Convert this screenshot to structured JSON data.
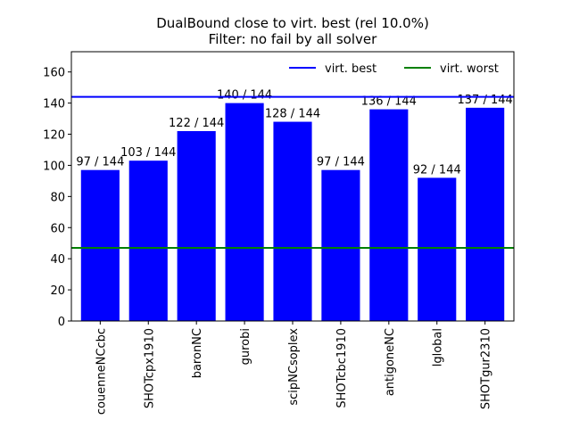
{
  "chart_data": {
    "type": "bar",
    "title": "DualBound close to virt. best (rel 10.0%)",
    "subtitle": "Filter: no fail by all solver",
    "xlabel": "",
    "ylabel": "",
    "categories": [
      "couenneNCcbc",
      "SHOTcpx1910",
      "baronNC",
      "gurobi",
      "scipNCsoplex",
      "SHOTcbc1910",
      "antigoneNC",
      "lglobal",
      "SHOTgur2310"
    ],
    "values": [
      97,
      103,
      122,
      140,
      128,
      97,
      136,
      92,
      137
    ],
    "bar_labels": [
      "97 / 144",
      "103 / 144",
      "122 / 144",
      "140 / 144",
      "128 / 144",
      "97 / 144",
      "136 / 144",
      "92 / 144",
      "137 / 144"
    ],
    "bar_color": "#0000ff",
    "ylim": [
      0,
      173
    ],
    "yticks": [
      0,
      20,
      40,
      60,
      80,
      100,
      120,
      140,
      160
    ],
    "reference_lines": [
      {
        "name": "virt. best",
        "value": 144,
        "color": "#0000ff"
      },
      {
        "name": "virt. worst",
        "value": 47,
        "color": "#008000"
      }
    ],
    "legend": {
      "position": "top-right",
      "entries": [
        "virt. best",
        "virt. worst"
      ]
    },
    "grid": false
  }
}
